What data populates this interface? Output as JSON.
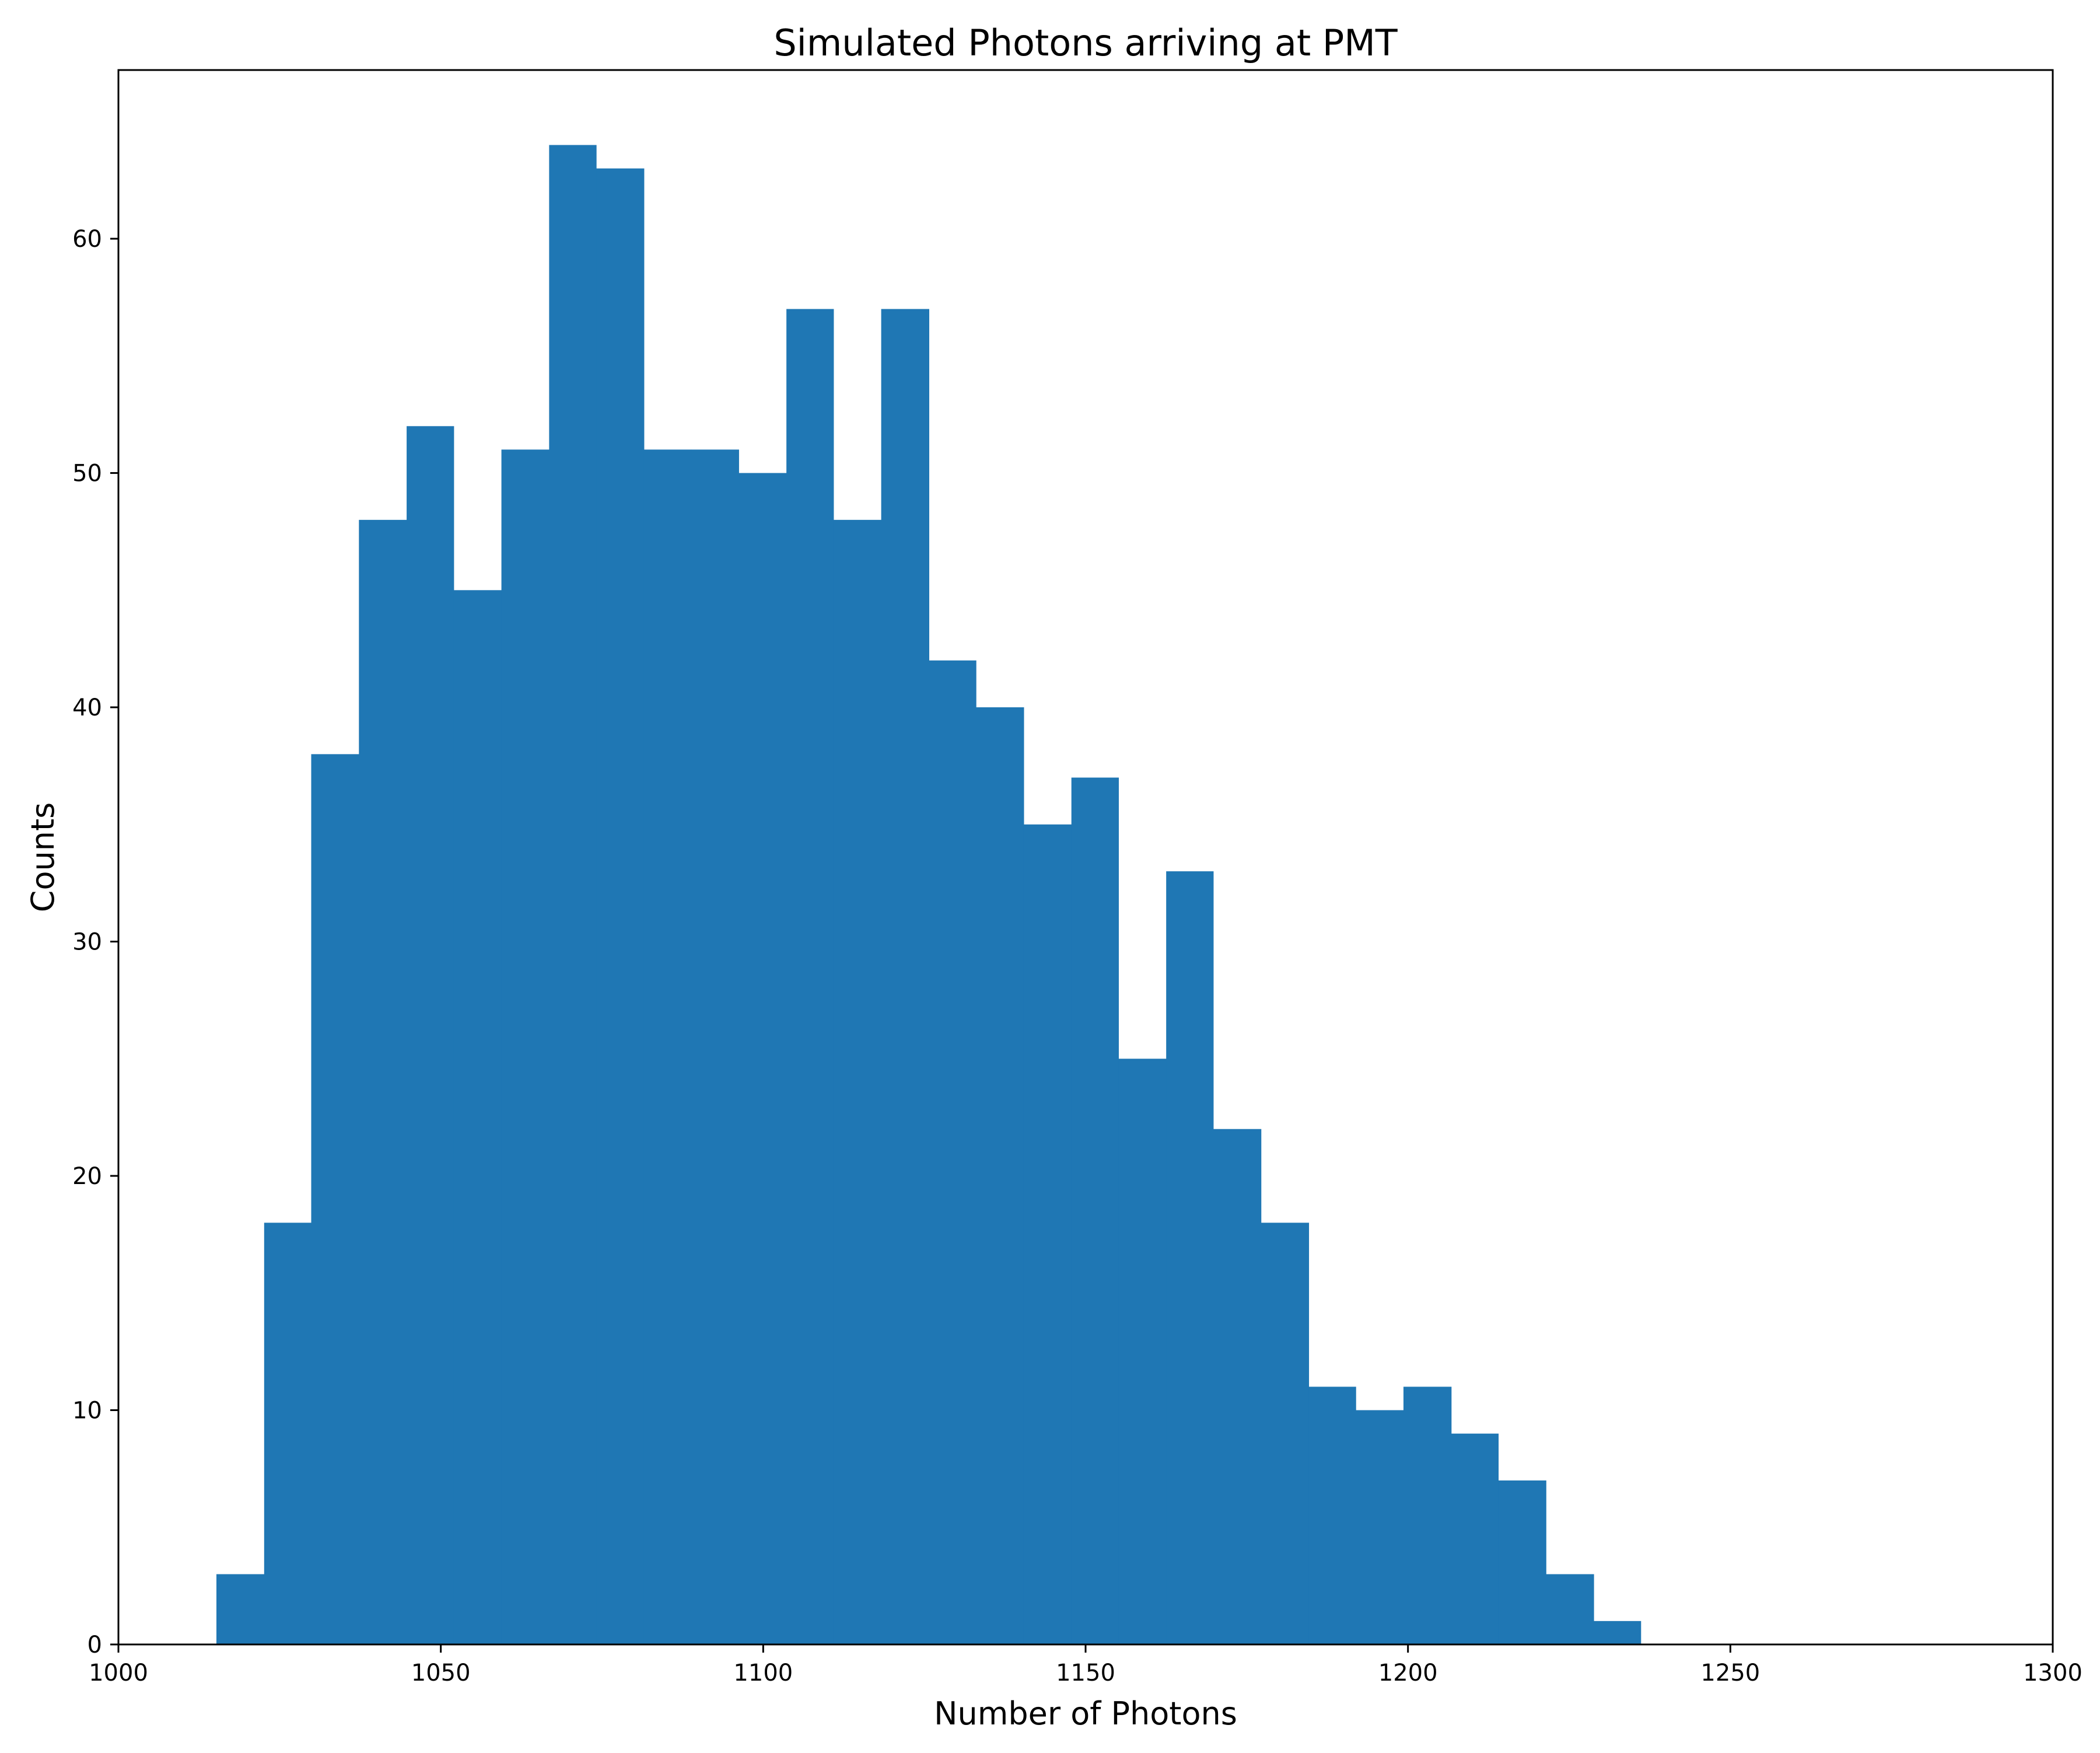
{
  "chart_data": {
    "type": "bar",
    "title": "Simulated Photons arriving at PMT",
    "xlabel": "Number of Photons",
    "ylabel": "Counts",
    "xlim": [
      1000,
      1300
    ],
    "ylim": [
      0,
      67.2
    ],
    "grid": false,
    "bar_color": "#1f77b4",
    "x_ticks": [
      1000,
      1050,
      1100,
      1150,
      1200,
      1250,
      1300
    ],
    "x_tick_labels": [
      "1000",
      "1050",
      "1100",
      "1150",
      "1200",
      "1250",
      "1300"
    ],
    "y_ticks": [
      0,
      10,
      20,
      30,
      40,
      50,
      60
    ],
    "y_tick_labels": [
      "0",
      "10",
      "20",
      "30",
      "40",
      "50",
      "60"
    ],
    "bin_edges": [
      1015.2,
      1022.6,
      1029.9,
      1037.3,
      1044.7,
      1052.0,
      1059.4,
      1066.8,
      1074.1,
      1081.5,
      1088.8,
      1096.2,
      1103.6,
      1110.9,
      1118.3,
      1125.7,
      1133.0,
      1140.4,
      1147.8,
      1155.1,
      1162.5,
      1169.8,
      1177.2,
      1184.6,
      1191.9,
      1199.3,
      1206.7,
      1214.0,
      1221.4,
      1228.8,
      1236.1
    ],
    "values": [
      3,
      18,
      38,
      48,
      52,
      45,
      51,
      64,
      63,
      51,
      51,
      50,
      57,
      48,
      57,
      42,
      40,
      35,
      37,
      25,
      33,
      22,
      18,
      11,
      10,
      11,
      9,
      7,
      3,
      1
    ]
  }
}
